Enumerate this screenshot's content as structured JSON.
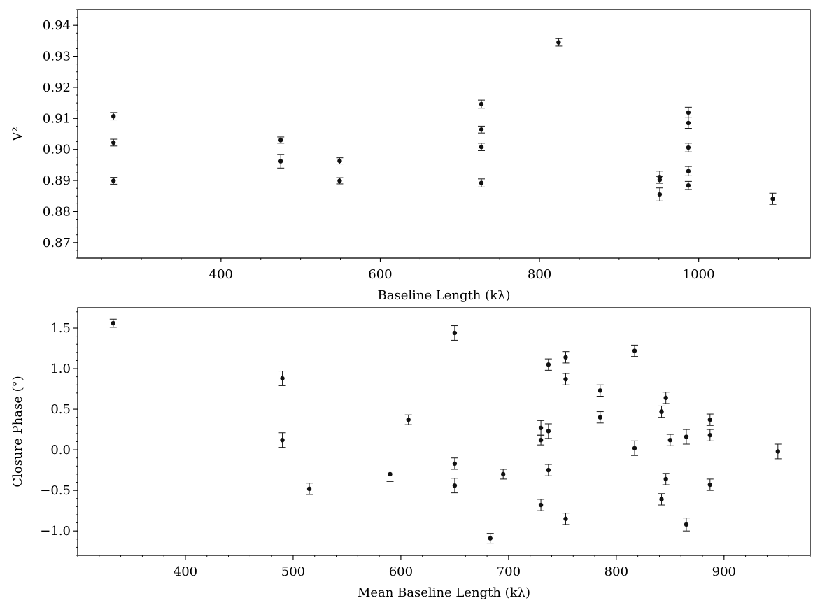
{
  "chart_data": [
    {
      "type": "scatter",
      "xlabel": "Baseline Length (kλ)",
      "ylabel": "V²",
      "xlim": [
        220,
        1140
      ],
      "ylim": [
        0.865,
        0.945
      ],
      "xticks": [
        400,
        600,
        800,
        1000
      ],
      "yticks": [
        0.87,
        0.88,
        0.89,
        0.9,
        0.91,
        0.92,
        0.93,
        0.94
      ],
      "xtick_labels": [
        "400",
        "600",
        "800",
        "1000"
      ],
      "ytick_labels": [
        "0.87",
        "0.88",
        "0.89",
        "0.90",
        "0.91",
        "0.92",
        "0.93",
        "0.94"
      ],
      "grid": false,
      "color": "#111111",
      "points": [
        {
          "x": 265,
          "y": 0.9107,
          "err": 0.0012
        },
        {
          "x": 265,
          "y": 0.9022,
          "err": 0.0011
        },
        {
          "x": 265,
          "y": 0.8899,
          "err": 0.0011
        },
        {
          "x": 475,
          "y": 0.903,
          "err": 0.001
        },
        {
          "x": 475,
          "y": 0.8962,
          "err": 0.0022
        },
        {
          "x": 549,
          "y": 0.8963,
          "err": 0.001
        },
        {
          "x": 549,
          "y": 0.8899,
          "err": 0.001
        },
        {
          "x": 727,
          "y": 0.9146,
          "err": 0.0013
        },
        {
          "x": 727,
          "y": 0.9064,
          "err": 0.0011
        },
        {
          "x": 727,
          "y": 0.9008,
          "err": 0.0012
        },
        {
          "x": 727,
          "y": 0.8892,
          "err": 0.0013
        },
        {
          "x": 824,
          "y": 0.9345,
          "err": 0.0012
        },
        {
          "x": 951,
          "y": 0.8911,
          "err": 0.0019
        },
        {
          "x": 951,
          "y": 0.8902,
          "err": 0.0011
        },
        {
          "x": 951,
          "y": 0.8855,
          "err": 0.0021
        },
        {
          "x": 987,
          "y": 0.9119,
          "err": 0.0017
        },
        {
          "x": 987,
          "y": 0.9085,
          "err": 0.0017
        },
        {
          "x": 987,
          "y": 0.9006,
          "err": 0.0014
        },
        {
          "x": 987,
          "y": 0.893,
          "err": 0.0015
        },
        {
          "x": 987,
          "y": 0.8884,
          "err": 0.0013
        },
        {
          "x": 1093,
          "y": 0.8841,
          "err": 0.0018
        }
      ]
    },
    {
      "type": "scatter",
      "xlabel": "Mean Baseline Length (kλ)",
      "ylabel": "Closure Phase (°)",
      "xlim": [
        300,
        980
      ],
      "ylim": [
        -1.3,
        1.75
      ],
      "xticks": [
        400,
        500,
        600,
        700,
        800,
        900
      ],
      "yticks": [
        -1.0,
        -0.5,
        0.0,
        0.5,
        1.0,
        1.5
      ],
      "xtick_labels": [
        "400",
        "500",
        "600",
        "700",
        "800",
        "900"
      ],
      "ytick_labels": [
        "−1.0",
        "−0.5",
        "0.0",
        "0.5",
        "1.0",
        "1.5"
      ],
      "grid": false,
      "color": "#111111",
      "points": [
        {
          "x": 333,
          "y": 1.56,
          "err": 0.05
        },
        {
          "x": 490,
          "y": 0.88,
          "err": 0.09
        },
        {
          "x": 490,
          "y": 0.12,
          "err": 0.09
        },
        {
          "x": 515,
          "y": -0.48,
          "err": 0.07
        },
        {
          "x": 590,
          "y": -0.3,
          "err": 0.09
        },
        {
          "x": 607,
          "y": 0.37,
          "err": 0.06
        },
        {
          "x": 650,
          "y": 1.44,
          "err": 0.09
        },
        {
          "x": 650,
          "y": -0.17,
          "err": 0.07
        },
        {
          "x": 650,
          "y": -0.44,
          "err": 0.09
        },
        {
          "x": 683,
          "y": -1.09,
          "err": 0.06
        },
        {
          "x": 695,
          "y": -0.3,
          "err": 0.06
        },
        {
          "x": 730,
          "y": 0.27,
          "err": 0.09
        },
        {
          "x": 730,
          "y": 0.12,
          "err": 0.06
        },
        {
          "x": 730,
          "y": -0.68,
          "err": 0.07
        },
        {
          "x": 737,
          "y": 1.05,
          "err": 0.07
        },
        {
          "x": 737,
          "y": 0.23,
          "err": 0.09
        },
        {
          "x": 737,
          "y": -0.25,
          "err": 0.07
        },
        {
          "x": 753,
          "y": 1.14,
          "err": 0.07
        },
        {
          "x": 753,
          "y": 0.87,
          "err": 0.07
        },
        {
          "x": 753,
          "y": -0.85,
          "err": 0.07
        },
        {
          "x": 785,
          "y": 0.73,
          "err": 0.07
        },
        {
          "x": 785,
          "y": 0.4,
          "err": 0.07
        },
        {
          "x": 817,
          "y": 1.22,
          "err": 0.07
        },
        {
          "x": 817,
          "y": 0.02,
          "err": 0.09
        },
        {
          "x": 842,
          "y": 0.47,
          "err": 0.07
        },
        {
          "x": 842,
          "y": -0.61,
          "err": 0.07
        },
        {
          "x": 846,
          "y": 0.64,
          "err": 0.07
        },
        {
          "x": 846,
          "y": -0.36,
          "err": 0.07
        },
        {
          "x": 850,
          "y": 0.12,
          "err": 0.07
        },
        {
          "x": 865,
          "y": 0.16,
          "err": 0.09
        },
        {
          "x": 865,
          "y": -0.92,
          "err": 0.08
        },
        {
          "x": 887,
          "y": 0.37,
          "err": 0.07
        },
        {
          "x": 887,
          "y": 0.18,
          "err": 0.07
        },
        {
          "x": 887,
          "y": -0.43,
          "err": 0.07
        },
        {
          "x": 950,
          "y": -0.02,
          "err": 0.09
        }
      ]
    }
  ]
}
